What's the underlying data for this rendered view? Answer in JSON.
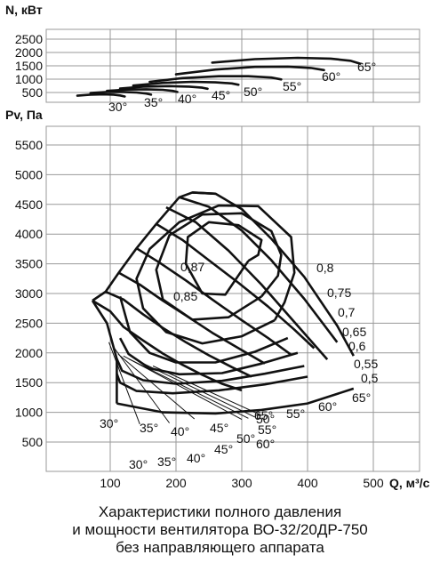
{
  "chart_data": [
    {
      "type": "line",
      "role": "power",
      "ylabel": "N, кВт",
      "x_ticks": [
        100,
        200,
        300,
        400,
        500
      ],
      "y_ticks": [
        500,
        1000,
        1500,
        2000,
        2500
      ],
      "xlim": [
        0,
        550
      ],
      "ylim": [
        250,
        2750
      ],
      "grid": true,
      "series": [
        {
          "name": "30°",
          "x": [
            50,
            70,
            90,
            105,
            115,
            122
          ],
          "y": [
            380,
            420,
            430,
            420,
            390,
            350
          ]
        },
        {
          "name": "35°",
          "x": [
            70,
            95,
            120,
            140,
            155,
            162
          ],
          "y": [
            480,
            520,
            520,
            500,
            460,
            420
          ]
        },
        {
          "name": "40°",
          "x": [
            95,
            125,
            155,
            180,
            195,
            202
          ],
          "y": [
            560,
            610,
            620,
            600,
            560,
            520
          ]
        },
        {
          "name": "45°",
          "x": [
            115,
            150,
            190,
            220,
            240,
            248
          ],
          "y": [
            650,
            720,
            740,
            720,
            680,
            640
          ]
        },
        {
          "name": "50°",
          "x": [
            135,
            180,
            225,
            260,
            285,
            295
          ],
          "y": [
            760,
            860,
            900,
            880,
            840,
            790
          ]
        },
        {
          "name": "55°",
          "x": [
            160,
            210,
            265,
            310,
            345,
            360
          ],
          "y": [
            900,
            1040,
            1110,
            1110,
            1060,
            990
          ]
        },
        {
          "name": "60°",
          "x": [
            200,
            260,
            320,
            370,
            405,
            425
          ],
          "y": [
            1180,
            1360,
            1460,
            1470,
            1420,
            1340
          ]
        },
        {
          "name": "65°",
          "x": [
            255,
            320,
            385,
            435,
            465,
            480
          ],
          "y": [
            1620,
            1750,
            1800,
            1770,
            1690,
            1580
          ]
        }
      ]
    },
    {
      "type": "line",
      "role": "pressure",
      "ylabel": "Pv, Па",
      "xlabel": "Q, м³/с",
      "x_ticks": [
        100,
        200,
        300,
        400,
        500
      ],
      "y_ticks": [
        500,
        1000,
        1500,
        2000,
        2500,
        3000,
        3500,
        4000,
        4500,
        5000,
        5500
      ],
      "xlim": [
        0,
        550
      ],
      "ylim": [
        0,
        5900
      ],
      "grid": true,
      "blade_angle_curves": [
        {
          "name": "30°",
          "x": [
            73,
            100,
            120,
            150,
            180,
            210,
            240,
            270,
            300
          ],
          "y": [
            2880,
            2700,
            2440,
            2210,
            1990,
            1800,
            1630,
            1480,
            1370
          ]
        },
        {
          "name": "35°",
          "x": [
            93,
            120,
            150,
            180,
            215,
            250,
            285,
            315
          ],
          "y": [
            3030,
            2900,
            2650,
            2420,
            2180,
            1960,
            1760,
            1600
          ]
        },
        {
          "name": "40°",
          "x": [
            113,
            145,
            180,
            215,
            255,
            295,
            335
          ],
          "y": [
            3350,
            3150,
            2880,
            2630,
            2340,
            2080,
            1820
          ]
        },
        {
          "name": "45°",
          "x": [
            140,
            175,
            215,
            255,
            300,
            340,
            375
          ],
          "y": [
            3760,
            3520,
            3220,
            2900,
            2550,
            2250,
            1970
          ]
        },
        {
          "name": "50°",
          "x": [
            170,
            210,
            250,
            295,
            340,
            380,
            410
          ],
          "y": [
            4170,
            3900,
            3560,
            3180,
            2780,
            2390,
            2080
          ]
        },
        {
          "name": "55°",
          "x": [
            185,
            230,
            280,
            330,
            380,
            430
          ],
          "y": [
            4450,
            4200,
            3720,
            3150,
            2520,
            1890
          ]
        },
        {
          "name": "60°",
          "x": [
            205,
            250,
            300,
            345,
            395,
            445
          ],
          "y": [
            4620,
            4460,
            4060,
            3560,
            2910,
            2180
          ]
        },
        {
          "name": "65°",
          "x": [
            225,
            260,
            300,
            345,
            395,
            445,
            470
          ],
          "y": [
            4700,
            4680,
            4420,
            3920,
            3280,
            2460,
            1950
          ]
        }
      ],
      "efficiency_contours": [
        {
          "name": "0,8",
          "x": [
            310,
            275,
            240,
            215,
            218,
            250,
            295,
            330,
            325,
            310
          ],
          "y": [
            3550,
            2980,
            3000,
            3500,
            3950,
            4200,
            4150,
            3900,
            3650,
            3550
          ]
        },
        {
          "name": "0,75",
          "x": [
            330,
            280,
            225,
            180,
            170,
            190,
            240,
            300,
            345,
            360,
            355,
            330
          ],
          "y": [
            2950,
            2600,
            2560,
            2900,
            3400,
            3980,
            4330,
            4350,
            4050,
            3650,
            3300,
            2950
          ]
        },
        {
          "name": "0,7",
          "x": [
            350,
            300,
            240,
            185,
            150,
            140,
            160,
            205,
            265,
            325,
            375,
            380,
            365,
            350
          ],
          "y": [
            2550,
            2280,
            2160,
            2350,
            2750,
            3250,
            3750,
            4200,
            4480,
            4470,
            3950,
            3350,
            2850,
            2550
          ]
        },
        {
          "name": "0,65",
          "x": [
            370,
            320,
            260,
            200,
            160,
            130,
            120,
            115
          ],
          "y": [
            2250,
            2020,
            1840,
            1840,
            2000,
            2350,
            2750,
            2950
          ]
        },
        {
          "name": "0,6",
          "x": [
            385,
            330,
            270,
            205,
            160,
            128,
            115
          ],
          "y": [
            2000,
            1820,
            1660,
            1640,
            1740,
            1980,
            2250
          ]
        },
        {
          "name": "0,55",
          "x": [
            395,
            335,
            270,
            200,
            150,
            118,
            110
          ],
          "y": [
            1780,
            1650,
            1530,
            1480,
            1540,
            1700,
            1900
          ]
        },
        {
          "name": "0,5",
          "x": [
            400,
            335,
            265,
            195,
            140,
            115,
            110
          ],
          "y": [
            1600,
            1470,
            1370,
            1320,
            1360,
            1500,
            1650
          ]
        }
      ],
      "annotations": [
        "0,87",
        "0,85",
        "0,8",
        "0,75",
        "0,7",
        "0,65",
        "0,6",
        "0,55",
        "0,5",
        "30°",
        "35°",
        "40°",
        "45°",
        "50°",
        "55°",
        "60°",
        "65°",
        "30°",
        "35°",
        "40°",
        "45°",
        "50°",
        "55°",
        "60°",
        "65°"
      ]
    }
  ],
  "caption": [
    "Характеристики полного давления",
    "и мощности вентилятора ВО-32/20ДР-750",
    "без направляющего аппарата"
  ]
}
